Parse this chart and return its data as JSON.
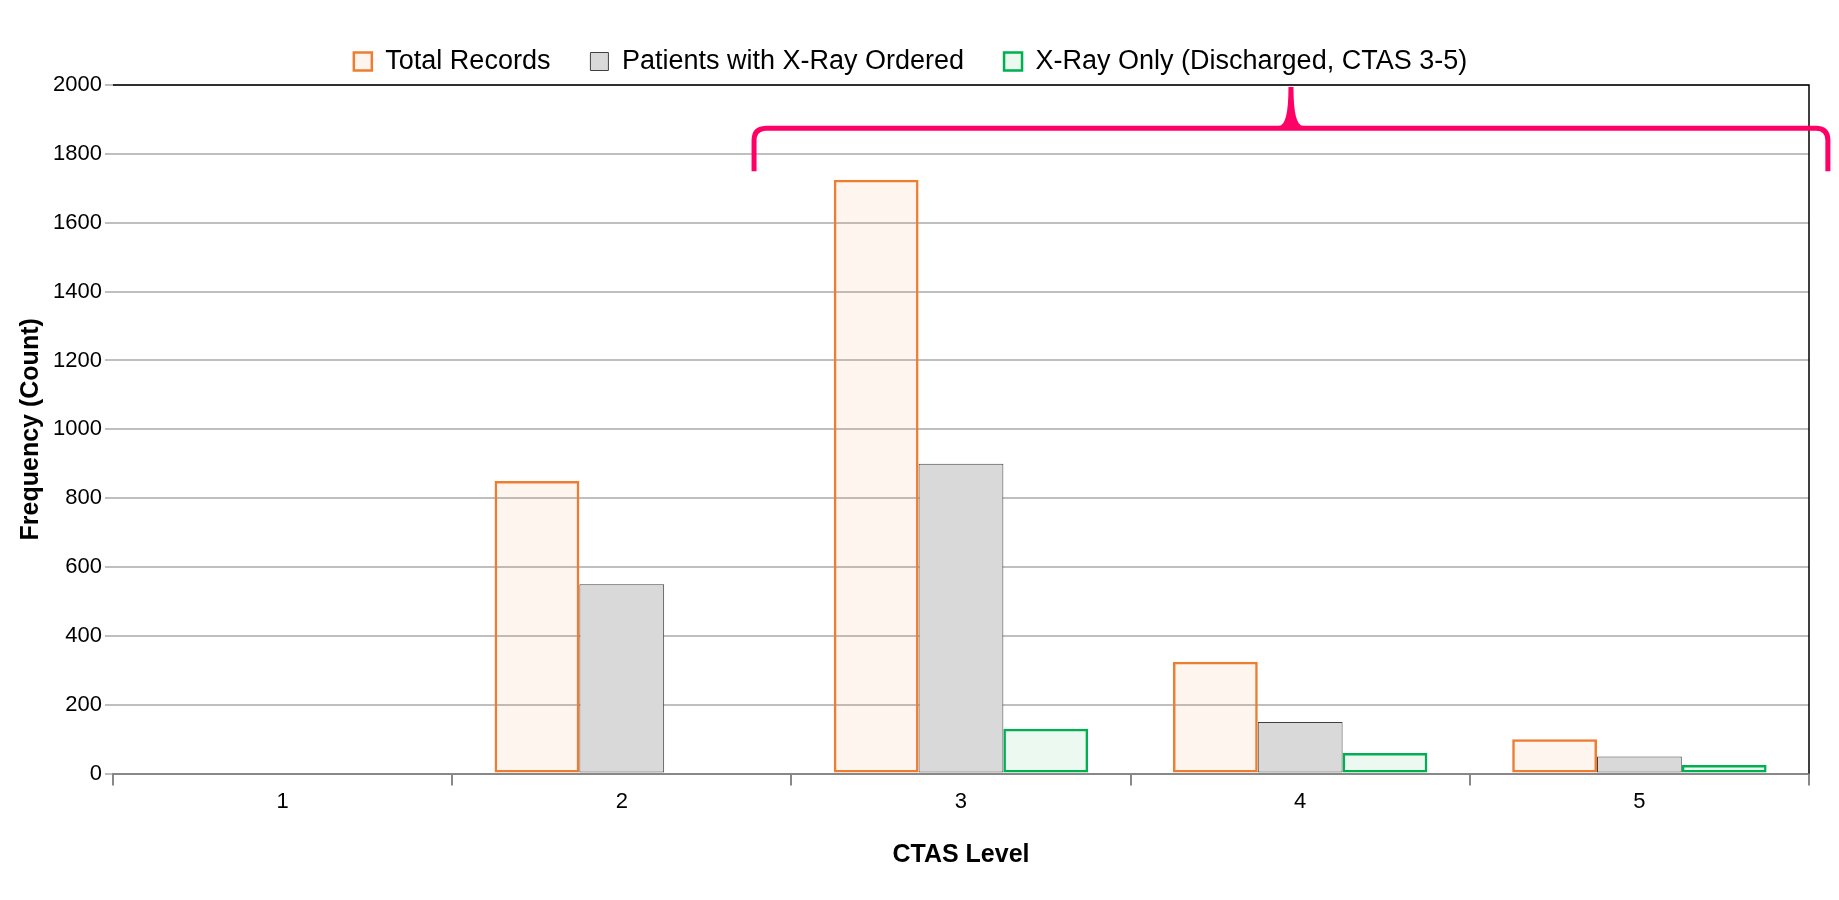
{
  "chart_data": {
    "type": "bar",
    "xlabel": "CTAS Level",
    "ylabel": "Frequency (Count)",
    "categories": [
      "1",
      "2",
      "3",
      "4",
      "5"
    ],
    "series": [
      {
        "name": "Total Records",
        "color": "#ed7d31",
        "values": [
          0,
          850,
          1725,
          325,
          100
        ]
      },
      {
        "name": "Patients with X-Ray Ordered",
        "color": "#d9d9d9",
        "values": [
          0,
          550,
          900,
          150,
          50
        ]
      },
      {
        "name": "X-Ray Only (Discharged, CTAS 3-5)",
        "color": "#00b050",
        "values": [
          0,
          0,
          130,
          60,
          25
        ]
      }
    ],
    "ylim": [
      0,
      2000
    ],
    "yticks": [
      0,
      200,
      400,
      600,
      800,
      1000,
      1200,
      1400,
      1600,
      1800,
      2000
    ],
    "grid": "y",
    "legend": "top"
  }
}
